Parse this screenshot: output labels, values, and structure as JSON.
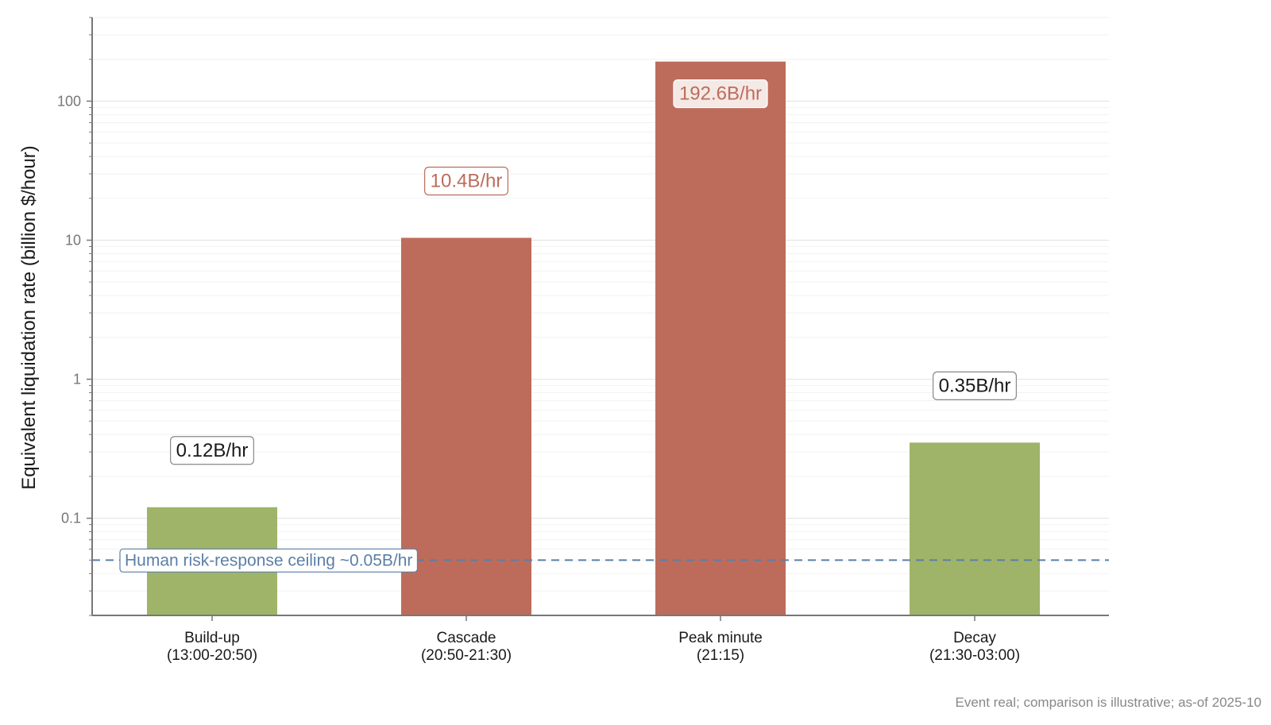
{
  "chart_data": {
    "type": "bar",
    "scale": "log",
    "ylabel": "Equivalent liquidation rate (billion $/hour)",
    "ylim": [
      0.02,
      400
    ],
    "y_ticks": [
      {
        "value": 0.1,
        "label": "0.1"
      },
      {
        "value": 1,
        "label": "1"
      },
      {
        "value": 10,
        "label": "10"
      },
      {
        "value": 100,
        "label": "100"
      }
    ],
    "grid": true,
    "bars": [
      {
        "category": "Build-up",
        "sublabel": "(13:00-20:50)",
        "value": 0.12,
        "label": "0.12B/hr",
        "color": "#9fb468",
        "label_color": "#1a1a1a",
        "label_border": "#888888",
        "label_position": "above"
      },
      {
        "category": "Cascade",
        "sublabel": "(20:50-21:30)",
        "value": 10.4,
        "label": "10.4B/hr",
        "color": "#bd6c5b",
        "label_color": "#bd6c5b",
        "label_border": "#bd6c5b",
        "label_position": "above"
      },
      {
        "category": "Peak minute",
        "sublabel": "(21:15)",
        "value": 192.6,
        "label": "192.6B/hr",
        "color": "#bd6c5b",
        "label_color": "#bd6c5b",
        "label_border": "#ffffff",
        "label_position": "inside"
      },
      {
        "category": "Decay",
        "sublabel": "(21:30-03:00)",
        "value": 0.35,
        "label": "0.35B/hr",
        "color": "#9fb468",
        "label_color": "#1a1a1a",
        "label_border": "#888888",
        "label_position": "above"
      }
    ],
    "reference_line": {
      "value": 0.05,
      "label": "Human risk-response ceiling ~0.05B/hr",
      "color": "#5b7fa6",
      "style": "dashed"
    },
    "footnote": "Event real; comparison is illustrative; as-of 2025-10",
    "colors": {
      "axis": "#777777",
      "grid_major": "#e6e6e6",
      "grid_minor": "#f2f2f2",
      "text": "#1a1a1a"
    }
  }
}
